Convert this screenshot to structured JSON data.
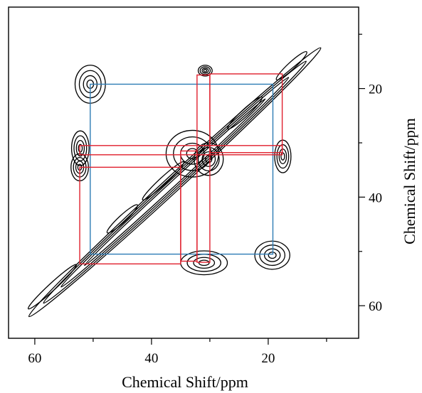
{
  "chart_data": {
    "type": "contour",
    "title": "",
    "xlabel": "Chemical Shift/ppm",
    "ylabel": "Chemical Shift/ppm",
    "xlim": [
      64.5,
      4.5
    ],
    "ylim": [
      66,
      5
    ],
    "x_ticks": [
      {
        "value": 60,
        "label": "60"
      },
      {
        "value": 40,
        "label": "40"
      },
      {
        "value": 20,
        "label": "20"
      }
    ],
    "x_minor_ticks": [
      50,
      30,
      10
    ],
    "y_ticks": [
      {
        "value": 20,
        "label": "20"
      },
      {
        "value": 40,
        "label": "40"
      },
      {
        "value": 60,
        "label": "60"
      }
    ],
    "y_minor_ticks": [
      10,
      30,
      50
    ],
    "diagonal": {
      "from": [
        61,
        62
      ],
      "to": [
        11,
        12.5
      ]
    },
    "cross_peaks": [
      {
        "x": 50.5,
        "y": 19.2,
        "rx": 2.6,
        "ry": 3.5
      },
      {
        "x": 52.2,
        "y": 31.0,
        "rx": 1.5,
        "ry": 3.2
      },
      {
        "x": 52.3,
        "y": 34.5,
        "rx": 1.5,
        "ry": 2.5
      },
      {
        "x": 33.0,
        "y": 32.0,
        "rx": 4.5,
        "ry": 4.3
      },
      {
        "x": 30.2,
        "y": 33.0,
        "rx": 2.5,
        "ry": 3.0
      },
      {
        "x": 31.0,
        "y": 52.1,
        "rx": 4.0,
        "ry": 2.2
      },
      {
        "x": 19.3,
        "y": 50.7,
        "rx": 3.0,
        "ry": 2.6
      },
      {
        "x": 17.5,
        "y": 32.5,
        "rx": 1.4,
        "ry": 3.0
      },
      {
        "x": 30.8,
        "y": 16.7,
        "rx": 1.2,
        "ry": 1.0
      }
    ],
    "connectivity_boxes": [
      {
        "color": "#2d7cb5",
        "x1": 50.5,
        "x2": 19.2,
        "y1": 19.2,
        "y2": 50.5
      },
      {
        "color": "#e0202e",
        "x1": 52.3,
        "x2": 35.0,
        "y1": 34.5,
        "y2": 52.3
      },
      {
        "color": "#e0202e",
        "x1": 52.3,
        "x2": 17.6,
        "y1": 30.5,
        "y2": 32.2
      },
      {
        "color": "#e0202e",
        "x1": 35.0,
        "x2": 32.2,
        "y1": 31.5,
        "y2": 51.8
      },
      {
        "color": "#e0202e",
        "x1": 32.2,
        "x2": 30.0,
        "y1": 17.5,
        "y2": 52.0
      },
      {
        "color": "#e0202e",
        "x1": 30.0,
        "x2": 17.6,
        "y1": 17.3,
        "y2": 31.8
      }
    ]
  }
}
